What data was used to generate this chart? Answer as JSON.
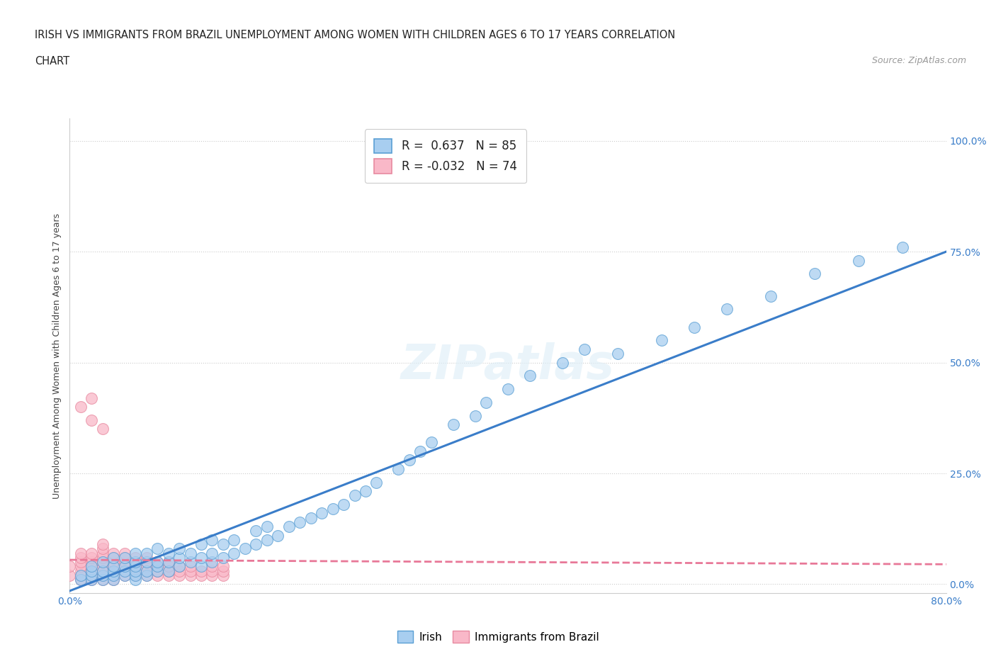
{
  "title_line1": "IRISH VS IMMIGRANTS FROM BRAZIL UNEMPLOYMENT AMONG WOMEN WITH CHILDREN AGES 6 TO 17 YEARS CORRELATION",
  "title_line2": "CHART",
  "source": "Source: ZipAtlas.com",
  "ylabel": "Unemployment Among Women with Children Ages 6 to 17 years",
  "ytick_labels": [
    "0.0%",
    "25.0%",
    "50.0%",
    "75.0%",
    "100.0%"
  ],
  "ytick_values": [
    0,
    0.25,
    0.5,
    0.75,
    1.0
  ],
  "xlim": [
    0,
    0.8
  ],
  "ylim": [
    -0.02,
    1.05
  ],
  "irish_color": "#a8cef0",
  "brazil_color": "#f9b8c8",
  "irish_edge_color": "#5a9fd4",
  "brazil_edge_color": "#e88aa0",
  "irish_line_color": "#3a7dc9",
  "brazil_line_color": "#e87898",
  "irish_R": 0.637,
  "irish_N": 85,
  "brazil_R": -0.032,
  "brazil_N": 74,
  "watermark": "ZIPatlas",
  "legend_irish": "Irish",
  "legend_brazil": "Immigrants from Brazil",
  "irish_line_x0": 0.0,
  "irish_line_y0": -0.015,
  "irish_line_x1": 0.8,
  "irish_line_y1": 0.75,
  "brazil_line_x0": 0.0,
  "brazil_line_y0": 0.055,
  "brazil_line_x1": 0.8,
  "brazil_line_y1": 0.045,
  "irish_scatter_x": [
    0.01,
    0.01,
    0.02,
    0.02,
    0.02,
    0.02,
    0.03,
    0.03,
    0.03,
    0.03,
    0.04,
    0.04,
    0.04,
    0.04,
    0.04,
    0.05,
    0.05,
    0.05,
    0.05,
    0.06,
    0.06,
    0.06,
    0.06,
    0.06,
    0.06,
    0.07,
    0.07,
    0.07,
    0.07,
    0.08,
    0.08,
    0.08,
    0.08,
    0.09,
    0.09,
    0.09,
    0.1,
    0.1,
    0.1,
    0.11,
    0.11,
    0.12,
    0.12,
    0.12,
    0.13,
    0.13,
    0.13,
    0.14,
    0.14,
    0.15,
    0.15,
    0.16,
    0.17,
    0.17,
    0.18,
    0.18,
    0.19,
    0.2,
    0.21,
    0.22,
    0.23,
    0.24,
    0.25,
    0.26,
    0.27,
    0.28,
    0.3,
    0.31,
    0.32,
    0.33,
    0.35,
    0.37,
    0.38,
    0.4,
    0.42,
    0.45,
    0.47,
    0.5,
    0.54,
    0.57,
    0.6,
    0.64,
    0.68,
    0.72,
    0.76
  ],
  "irish_scatter_y": [
    0.01,
    0.02,
    0.01,
    0.02,
    0.03,
    0.04,
    0.01,
    0.02,
    0.03,
    0.05,
    0.01,
    0.02,
    0.03,
    0.04,
    0.06,
    0.02,
    0.03,
    0.04,
    0.06,
    0.01,
    0.02,
    0.03,
    0.04,
    0.05,
    0.07,
    0.02,
    0.03,
    0.05,
    0.07,
    0.03,
    0.04,
    0.05,
    0.08,
    0.03,
    0.05,
    0.07,
    0.04,
    0.06,
    0.08,
    0.05,
    0.07,
    0.04,
    0.06,
    0.09,
    0.05,
    0.07,
    0.1,
    0.06,
    0.09,
    0.07,
    0.1,
    0.08,
    0.09,
    0.12,
    0.1,
    0.13,
    0.11,
    0.13,
    0.14,
    0.15,
    0.16,
    0.17,
    0.18,
    0.2,
    0.21,
    0.23,
    0.26,
    0.28,
    0.3,
    0.32,
    0.36,
    0.38,
    0.41,
    0.44,
    0.47,
    0.5,
    0.53,
    0.52,
    0.55,
    0.58,
    0.62,
    0.65,
    0.7,
    0.73,
    0.76
  ],
  "brazil_scatter_x": [
    0.0,
    0.0,
    0.01,
    0.01,
    0.01,
    0.01,
    0.01,
    0.01,
    0.01,
    0.02,
    0.02,
    0.02,
    0.02,
    0.02,
    0.02,
    0.02,
    0.03,
    0.03,
    0.03,
    0.03,
    0.03,
    0.03,
    0.03,
    0.03,
    0.03,
    0.04,
    0.04,
    0.04,
    0.04,
    0.04,
    0.04,
    0.04,
    0.05,
    0.05,
    0.05,
    0.05,
    0.05,
    0.05,
    0.06,
    0.06,
    0.06,
    0.06,
    0.06,
    0.07,
    0.07,
    0.07,
    0.07,
    0.07,
    0.08,
    0.08,
    0.08,
    0.08,
    0.09,
    0.09,
    0.09,
    0.09,
    0.1,
    0.1,
    0.1,
    0.11,
    0.11,
    0.11,
    0.12,
    0.12,
    0.13,
    0.13,
    0.13,
    0.14,
    0.14,
    0.14,
    0.01,
    0.02,
    0.02,
    0.03
  ],
  "brazil_scatter_y": [
    0.02,
    0.04,
    0.01,
    0.02,
    0.03,
    0.04,
    0.05,
    0.06,
    0.07,
    0.01,
    0.02,
    0.03,
    0.04,
    0.05,
    0.06,
    0.07,
    0.01,
    0.02,
    0.03,
    0.04,
    0.05,
    0.06,
    0.07,
    0.08,
    0.09,
    0.01,
    0.02,
    0.03,
    0.04,
    0.05,
    0.06,
    0.07,
    0.02,
    0.03,
    0.04,
    0.05,
    0.06,
    0.07,
    0.02,
    0.03,
    0.04,
    0.05,
    0.06,
    0.02,
    0.03,
    0.04,
    0.05,
    0.06,
    0.02,
    0.03,
    0.04,
    0.05,
    0.02,
    0.03,
    0.04,
    0.05,
    0.02,
    0.03,
    0.04,
    0.02,
    0.03,
    0.04,
    0.02,
    0.03,
    0.02,
    0.03,
    0.04,
    0.02,
    0.03,
    0.04,
    0.4,
    0.37,
    0.42,
    0.35
  ]
}
